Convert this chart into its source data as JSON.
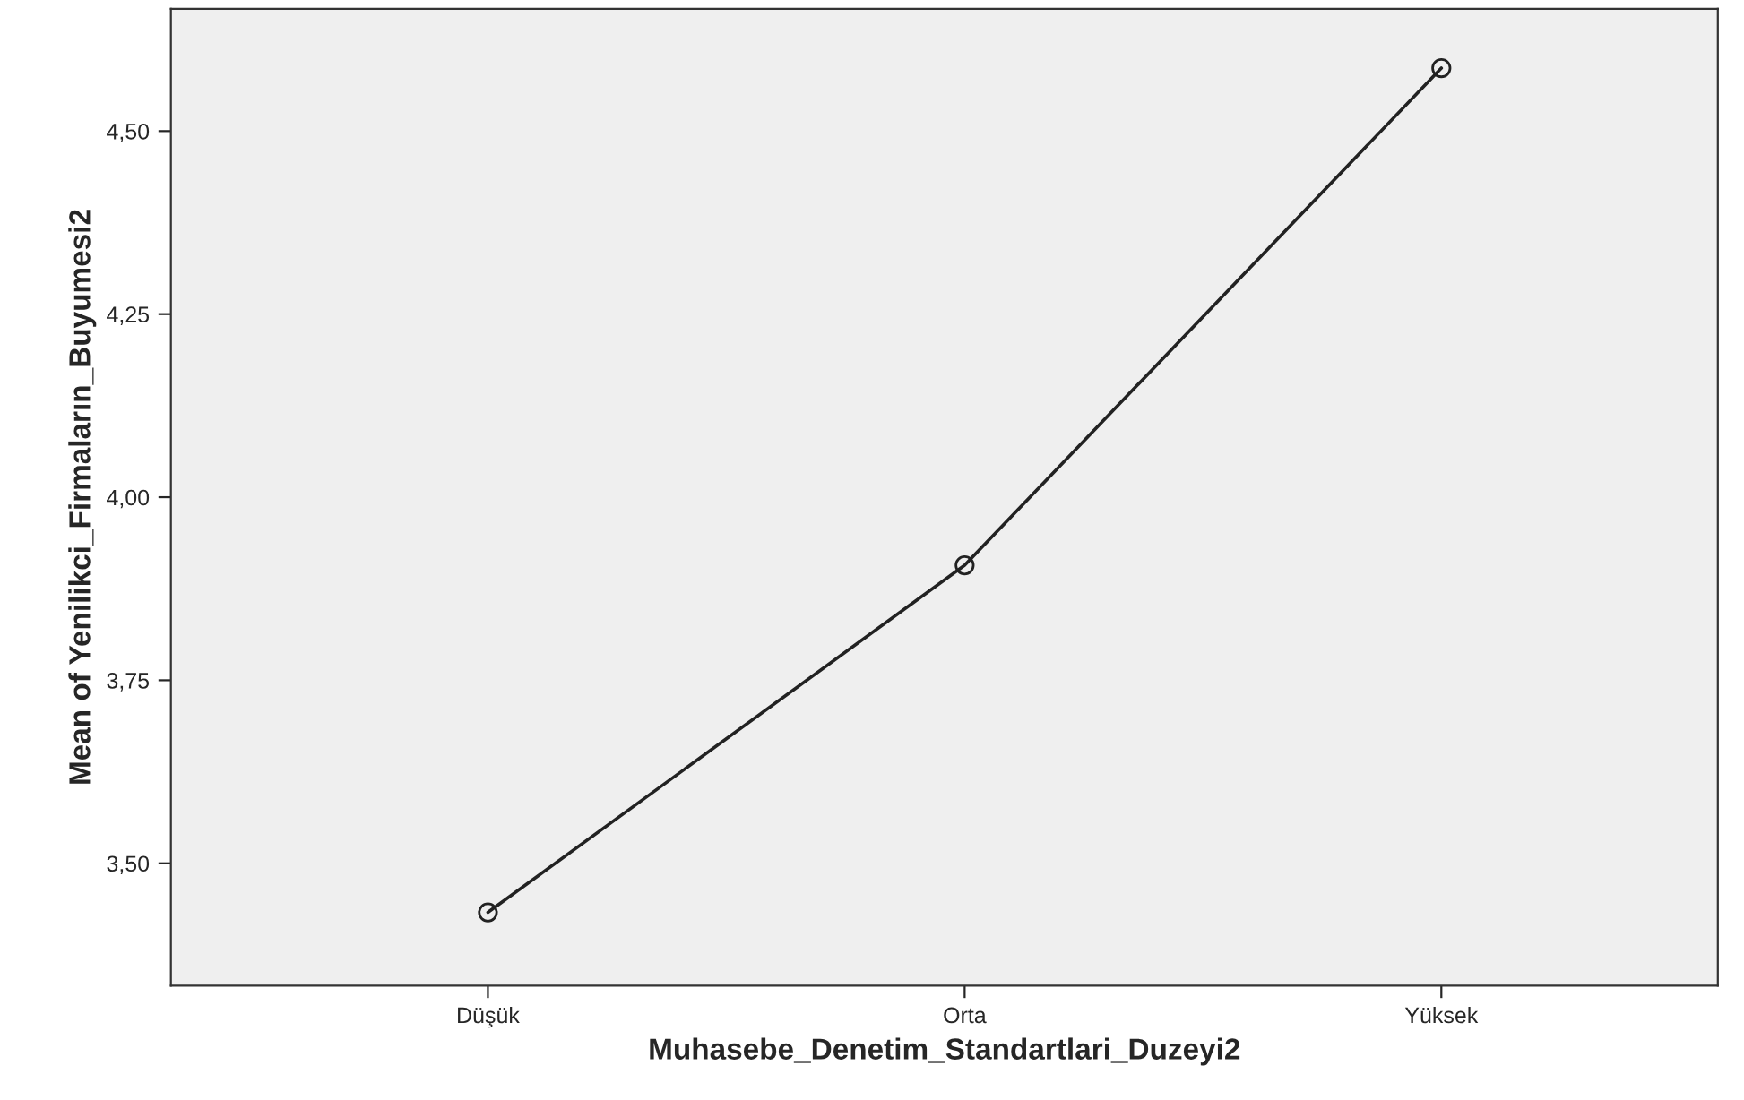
{
  "chart_data": {
    "type": "line",
    "xlabel": "Muhasebe_Denetim_Standartlari_Duzeyi2",
    "ylabel": "Mean of Yenilikci_Firmaların_Buyumesi2",
    "categories": [
      "Düşük",
      "Orta",
      "Yüksek"
    ],
    "series": [
      {
        "color": "#222222",
        "values": [
          3.433,
          3.907,
          4.586
        ]
      }
    ],
    "ylim": [
      3.333,
      4.667
    ],
    "yticks": [
      {
        "value": 3.5,
        "label": "3,50"
      },
      {
        "value": 3.75,
        "label": "3,75"
      },
      {
        "value": 4.0,
        "label": "4,00"
      },
      {
        "value": 4.25,
        "label": "4,25"
      },
      {
        "value": 4.5,
        "label": "4,50"
      }
    ],
    "marker": "circle",
    "line_style": "solid",
    "grid": false
  }
}
